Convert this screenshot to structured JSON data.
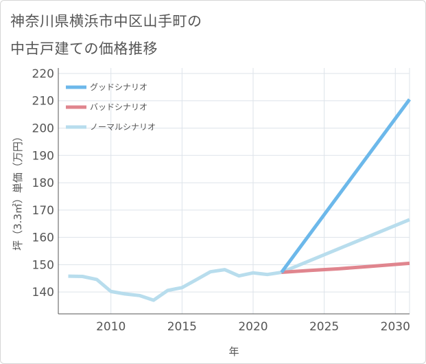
{
  "title_lines": [
    "神奈川県横浜市中区山手町の",
    "中古戸建ての価格推移"
  ],
  "colors": {
    "good": "#6cb8ea",
    "bad": "#e0858e",
    "normal": "#b8dded",
    "grid": "#dde3ea",
    "axis": "#555555"
  },
  "chart_data": {
    "type": "line",
    "title": "神奈川県横浜市中区山手町の中古戸建ての価格推移",
    "xlabel": "年",
    "ylabel": "坪（3.3㎡）単価（万円）",
    "xlim": [
      2006.3,
      2031
    ],
    "ylim": [
      132,
      222
    ],
    "x_ticks": [
      2010,
      2015,
      2020,
      2025,
      2030
    ],
    "y_ticks": [
      140,
      150,
      160,
      170,
      180,
      190,
      200,
      210,
      220
    ],
    "grid": true,
    "legend_position": "top-left",
    "series": [
      {
        "name": "グッドシナリオ",
        "color_key": "good",
        "x": [
          2022,
          2031
        ],
        "y": [
          147.2,
          210.5
        ]
      },
      {
        "name": "バッドシナリオ",
        "color_key": "bad",
        "x": [
          2022,
          2024,
          2026,
          2028,
          2031
        ],
        "y": [
          147.2,
          147.9,
          148.5,
          149.3,
          150.5
        ]
      },
      {
        "name": "ノーマルシナリオ",
        "color_key": "normal",
        "x": [
          2007,
          2008,
          2009,
          2010,
          2011,
          2012,
          2013,
          2014,
          2015,
          2016,
          2017,
          2018,
          2019,
          2020,
          2021,
          2022,
          2031
        ],
        "y": [
          145.8,
          145.7,
          144.6,
          140.2,
          139.3,
          138.7,
          137.0,
          140.6,
          141.6,
          144.5,
          147.4,
          148.2,
          145.9,
          147.0,
          146.4,
          147.2,
          166.5
        ]
      }
    ]
  }
}
